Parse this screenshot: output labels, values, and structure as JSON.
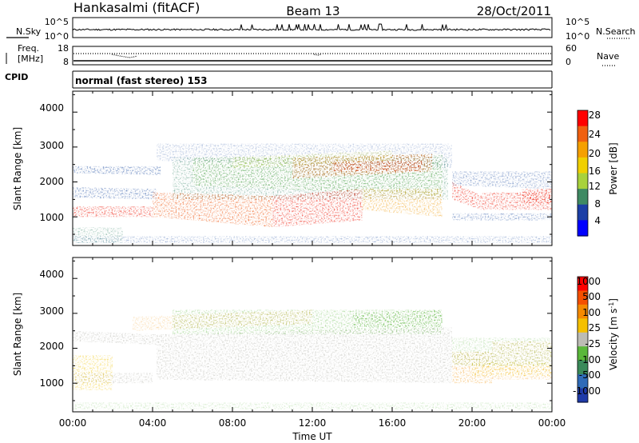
{
  "header": {
    "station": "Hankasalmi (fitACF)",
    "beam": "Beam 13",
    "date": "28/Oct/2011"
  },
  "noise_panel": {
    "left_label": "N.Sky",
    "right_label": "N.Search",
    "left_ticks": [
      "10^5",
      "10^0"
    ],
    "right_ticks": [
      "10^5",
      "10^0"
    ]
  },
  "freq_panel": {
    "left_label_line1": "Freq.",
    "left_label_line2": "[MHz]",
    "right_label": "Nave",
    "left_ticks": [
      "18",
      "8"
    ],
    "right_ticks": [
      "60",
      "0"
    ]
  },
  "cpid": {
    "label": "CPID",
    "text": "normal (fast stereo) 153"
  },
  "chart_data": [
    {
      "type": "heatmap",
      "title": "Power",
      "ylabel": "Slant Range [km]",
      "xlabel": "",
      "ylim": [
        180,
        4600
      ],
      "yticks": [
        "4000",
        "3000",
        "2000",
        "1000"
      ],
      "colorbar_label": "Power [dB]",
      "colorbar_ticks": [
        "28",
        "24",
        "20",
        "16",
        "12",
        "8",
        "4"
      ],
      "colorbar_colors": [
        "#0000ff",
        "#1c3fa6",
        "#3f8a63",
        "#a8d23c",
        "#f0d000",
        "#f5a000",
        "#f06010",
        "#ff0000"
      ],
      "colors": [
        "#2f5aa8",
        "#3d8a6e",
        "#66bb33",
        "#d8dc3a",
        "#f2a624",
        "#ef5a18",
        "#ee1c0e"
      ]
    },
    {
      "type": "heatmap",
      "title": "Velocity",
      "ylabel": "Slant Range [km]",
      "xlabel": "Time UT",
      "ylim": [
        180,
        4600
      ],
      "yticks": [
        "4000",
        "3000",
        "2000",
        "1000"
      ],
      "xticks": [
        "00:00",
        "04:00",
        "08:00",
        "12:00",
        "16:00",
        "20:00",
        "00:00"
      ],
      "colorbar_label": "Velocity [m s^-1]",
      "colorbar_ticks": [
        "1000",
        "500",
        "100",
        "25",
        "-25",
        "-100",
        "-500",
        "-1000"
      ],
      "colorbar_colors": [
        "#1e3aa8",
        "#2f6bb8",
        "#3a8a5a",
        "#5ab83a",
        "#bcbcb4",
        "#f5c000",
        "#f58a00",
        "#f55000",
        "#ff0000"
      ],
      "colors": [
        "#c4c4be",
        "#58b43a",
        "#f29a1a",
        "#f0c400",
        "#e83818"
      ]
    }
  ]
}
